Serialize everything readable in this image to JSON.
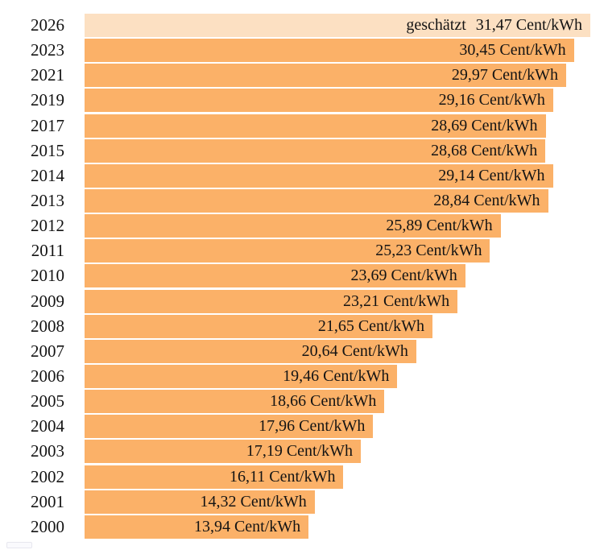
{
  "colors": {
    "bar": "#FBB168",
    "bar_estimated": "#FCE0C2",
    "text": "#141414",
    "background": "#FFFFFF",
    "fragment": "#E7E7EF"
  },
  "chart_data": {
    "type": "bar",
    "orientation": "horizontal",
    "title": "",
    "xlabel": "",
    "ylabel": "",
    "unit": "Cent/kWh",
    "xlim": [
      0,
      31.47
    ],
    "grid": false,
    "legend": false,
    "estimated_prefix": "geschätzt",
    "estimated_index": 0,
    "categories": [
      "2026",
      "2023",
      "2021",
      "2019",
      "2017",
      "2015",
      "2014",
      "2013",
      "2012",
      "2011",
      "2010",
      "2009",
      "2008",
      "2007",
      "2006",
      "2005",
      "2004",
      "2003",
      "2002",
      "2001",
      "2000"
    ],
    "values": [
      31.47,
      30.45,
      29.97,
      29.16,
      28.69,
      28.68,
      29.14,
      28.84,
      25.89,
      25.23,
      23.69,
      23.21,
      21.65,
      20.64,
      19.46,
      18.66,
      17.96,
      17.19,
      16.11,
      14.32,
      13.94
    ],
    "value_labels": [
      "31,47 Cent/kWh",
      "30,45 Cent/kWh",
      "29,97 Cent/kWh",
      "29,16 Cent/kWh",
      "28,69 Cent/kWh",
      "28,68 Cent/kWh",
      "29,14 Cent/kWh",
      "28,84 Cent/kWh",
      "25,89 Cent/kWh",
      "25,23 Cent/kWh",
      "23,69 Cent/kWh",
      "23,21 Cent/kWh",
      "21,65 Cent/kWh",
      "20,64 Cent/kWh",
      "19,46 Cent/kWh",
      "18,66 Cent/kWh",
      "17,96 Cent/kWh",
      "17,19 Cent/kWh",
      "16,11 Cent/kWh",
      "14,32 Cent/kWh",
      "13,94 Cent/kWh"
    ]
  }
}
